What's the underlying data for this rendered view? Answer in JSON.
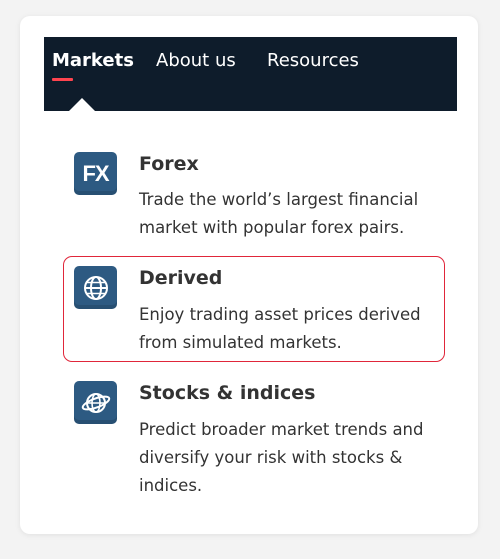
{
  "nav": {
    "items": [
      {
        "label": "Markets",
        "active": true
      },
      {
        "label": "About us",
        "active": false
      },
      {
        "label": "Resources",
        "active": false
      }
    ]
  },
  "markets": [
    {
      "icon": "fx-icon",
      "icon_text": "FX",
      "title": "Forex",
      "description": "Trade the world’s largest financial market with popular forex pairs."
    },
    {
      "icon": "globe-grid-icon",
      "title": "Derived",
      "description": "Enjoy trading asset prices derived from simulated markets.",
      "highlighted": true
    },
    {
      "icon": "globe-orbit-icon",
      "title": "Stocks & indices",
      "description": "Predict broader market trends and diversify your risk with stocks & indices."
    }
  ],
  "colors": {
    "navbar_bg": "#0e1c2b",
    "accent_red": "#ff444f",
    "highlight_border": "#e0263a",
    "icon_bg": "#2d5a82",
    "text": "#333333"
  }
}
